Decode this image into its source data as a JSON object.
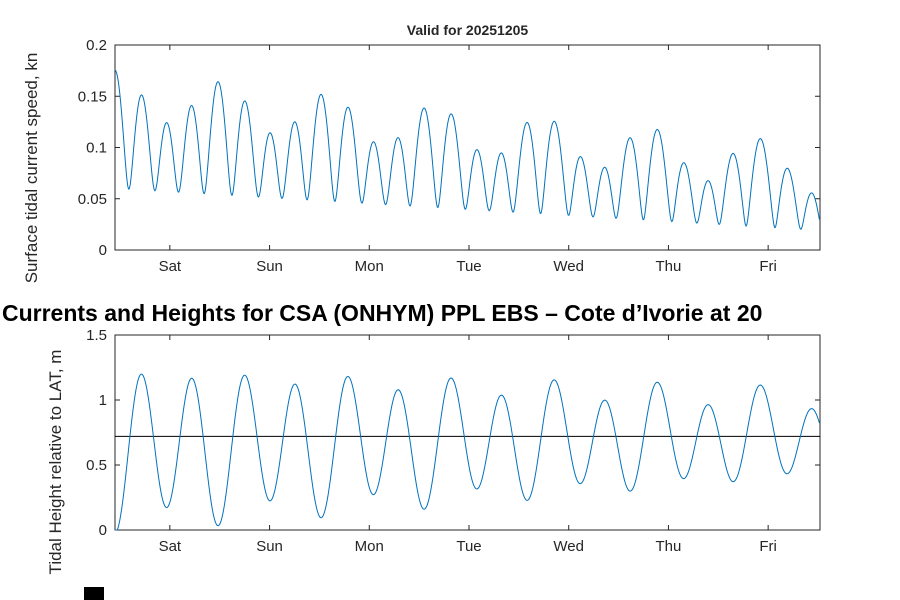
{
  "figure": {
    "suptitle": "Currents and Heights for CSA (ONHYM) PPL EBS  – Cote d’Ivorie at 20",
    "background": "#ffffff"
  },
  "chart_data": [
    {
      "type": "line",
      "title": "Valid for 20251205",
      "ylabel": "Surface tidal current speed, kn",
      "xlabel": "",
      "line_color": "#0072BD",
      "axis_color": "#262626",
      "grid": false,
      "legend": null,
      "ylim": [
        0,
        0.2
      ],
      "xlim": [
        0,
        7.07
      ],
      "yticks": [
        {
          "v": 0,
          "label": "0"
        },
        {
          "v": 0.05,
          "label": "0.05"
        },
        {
          "v": 0.1,
          "label": "0.1"
        },
        {
          "v": 0.15,
          "label": "0.15"
        },
        {
          "v": 0.2,
          "label": "0.2"
        }
      ],
      "xticks": [
        {
          "t": 0.55,
          "label": "Sat"
        },
        {
          "t": 1.55,
          "label": "Sun"
        },
        {
          "t": 2.55,
          "label": "Mon"
        },
        {
          "t": 3.55,
          "label": "Tue"
        },
        {
          "t": 4.55,
          "label": "Wed"
        },
        {
          "t": 5.55,
          "label": "Thu"
        },
        {
          "t": 6.55,
          "label": "Fri"
        }
      ],
      "signal": {
        "form": "rectified",
        "base": 0.0,
        "base_slope": 0.0,
        "k0": 0.06,
        "k_slope": -0.0058,
        "components": [
          {
            "amp0": 0.14,
            "amp_slope": -0.009,
            "period": 0.5176,
            "phase": 1.5708
          },
          {
            "amp0": 0.025,
            "amp_slope": 0,
            "period": 1.0,
            "phase": 1.5708
          }
        ]
      },
      "value_range_observed": {
        "max_peak": 0.18,
        "min_trough": 0.03
      }
    },
    {
      "type": "line",
      "title": "",
      "ylabel": "Tidal Height relative to LAT, m",
      "xlabel": "",
      "line_color": "#0072BD",
      "axis_color": "#262626",
      "grid": false,
      "legend": null,
      "mean_line": 0.72,
      "ylim": [
        0,
        1.5
      ],
      "xlim": [
        0,
        7.07
      ],
      "yticks": [
        {
          "v": 0,
          "label": "0"
        },
        {
          "v": 0.5,
          "label": "0.5"
        },
        {
          "v": 1,
          "label": "1"
        },
        {
          "v": 1.5,
          "label": "1.5"
        }
      ],
      "xticks": [
        {
          "t": 0.55,
          "label": "Sat"
        },
        {
          "t": 1.55,
          "label": "Sun"
        },
        {
          "t": 2.55,
          "label": "Mon"
        },
        {
          "t": 3.55,
          "label": "Tue"
        },
        {
          "t": 4.55,
          "label": "Wed"
        },
        {
          "t": 5.55,
          "label": "Thu"
        },
        {
          "t": 6.55,
          "label": "Fri"
        }
      ],
      "signal": {
        "form": "sum",
        "base": 0.63,
        "base_slope": 0.014,
        "components": [
          {
            "amp0": 0.57,
            "amp_slope": -0.04,
            "period": 0.5176,
            "phase": -1.5708
          },
          {
            "amp0": 0.085,
            "amp_slope": 0,
            "period": 1.0,
            "phase": -1.5708
          }
        ]
      },
      "value_range_observed": {
        "max_peak": 1.27,
        "min_trough": 0.0
      }
    }
  ]
}
